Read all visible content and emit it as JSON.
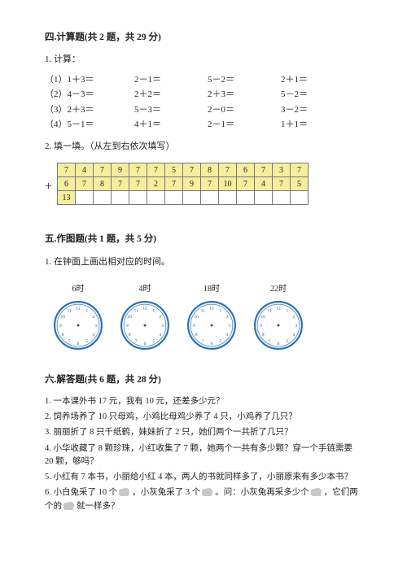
{
  "sec4": {
    "title": "四.计算题(共 2 题，共 29 分)",
    "p1_label": "1. 计算：",
    "rows": [
      [
        "（1）1＋3＝",
        "2－1＝",
        "5－2＝",
        "2＋1＝"
      ],
      [
        "（2）4－3＝",
        "2＋2＝",
        "2＋3＝",
        "5－2＝"
      ],
      [
        "（3）2＋3＝",
        "5－3＝",
        "2－0＝",
        "3－2＝"
      ],
      [
        "（4）5－1＝",
        "4＋1＝",
        "2－1＝",
        "1＋1＝"
      ]
    ],
    "p2_label": "2. 填一填。（从左到右依次填写）",
    "plus": "+",
    "table": {
      "row1": [
        "7",
        "4",
        "7",
        "9",
        "7",
        "7",
        "5",
        "7",
        "8",
        "7",
        "6",
        "7",
        "3",
        "7"
      ],
      "row2": [
        "6",
        "7",
        "8",
        "7",
        "7",
        "2",
        "7",
        "9",
        "7",
        "10",
        "7",
        "4",
        "7",
        "5"
      ],
      "row3_first": "13"
    }
  },
  "sec5": {
    "title": "五.作图题(共 1 题，共 5 分)",
    "p1_label": "1. 在钟面上画出相对应的时间。",
    "clocks": [
      {
        "label": "6时"
      },
      {
        "label": "4时"
      },
      {
        "label": "18时"
      },
      {
        "label": "22时"
      }
    ],
    "clock_style": {
      "outer_stroke": "#2a6fb0",
      "outer_fill": "#eaf3fb",
      "inner_fill": "#ffffff",
      "num_color": "#2a4a88",
      "num_size": 5.2
    }
  },
  "sec6": {
    "title": "六.解答题(共 6 题，共 28 分)",
    "items": [
      "1. 一本课外书 17 元，我有 10 元，还差多少元？",
      "2. 饲养场养了 10 只母鸡，小鸡比母鸡少养了 4 只，小鸡养了几只？",
      "3. 丽丽折了 8 只千纸鹤，妹妹折了 2 只，她们两个一共折了几只？",
      "4. 小华收藏了 8 颗珍珠，小红收集了 7 颗，她两个一共有多少颗？穿一个手链需要 20 颗，够吗？",
      "5. 小红有 7 本书，小丽给小红 4 本，两人的书就同样多了，小丽原来有多少本书？",
      "6. 小白兔采了 10 个       ，小灰兔采了 3 个       。问：小灰兔再采多少个       ，它们两个的       就一样多？"
    ]
  }
}
